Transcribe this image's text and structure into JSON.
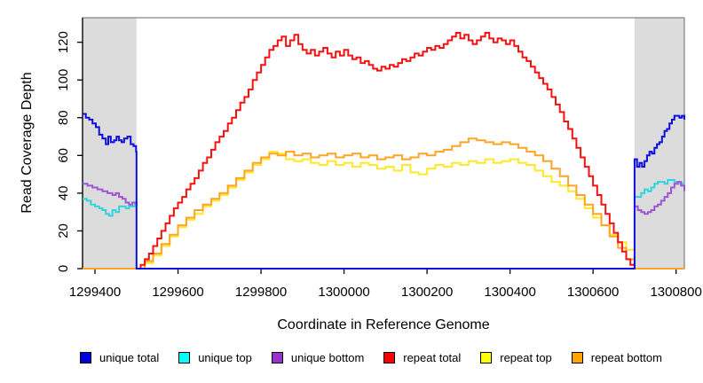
{
  "chart_data": {
    "type": "line",
    "title": "",
    "xlabel": "Coordinate in Reference Genome",
    "ylabel": "Read Coverage Depth",
    "xlim": [
      1299370,
      1300820
    ],
    "ylim": [
      0,
      133
    ],
    "x_ticks": [
      1299400,
      1299600,
      1299800,
      1300000,
      1300200,
      1300400,
      1300600,
      1300800
    ],
    "y_ticks": [
      0,
      20,
      40,
      60,
      80,
      100,
      120
    ],
    "grid": "off",
    "legend_position": "bottom",
    "plot_background": "#ffffff",
    "box_border_color": "#7f7f7f",
    "axis_color": "#000000",
    "shaded_regions": {
      "color": "#dcdcdc",
      "ranges": [
        [
          1299370,
          1299500
        ],
        [
          1300700,
          1300820
        ]
      ]
    },
    "series": [
      {
        "name": "unique total",
        "color": "#0d0de0",
        "legend_color": "#0000dd",
        "segments": [
          {
            "x": [
              1299370,
              1299378,
              1299386,
              1299394,
              1299402,
              1299410,
              1299418,
              1299426,
              1299432,
              1299438,
              1299446,
              1299452,
              1299458,
              1299464,
              1299470,
              1299478,
              1299486,
              1299493,
              1299499,
              1299500,
              1300699,
              1300700,
              1300706,
              1300712,
              1300718,
              1300724,
              1300730,
              1300736,
              1300742,
              1300748,
              1300754,
              1300760,
              1300766,
              1300772,
              1300778,
              1300784,
              1300790,
              1300796,
              1300802,
              1300808,
              1300814,
              1300820
            ],
            "y": [
              82,
              80,
              79,
              77,
              75,
              71,
              69,
              66,
              70,
              67,
              68,
              70,
              68,
              67,
              69,
              70,
              66,
              65,
              62,
              0,
              0,
              58,
              54,
              56,
              54,
              57,
              60,
              62,
              61,
              64,
              66,
              67,
              70,
              73,
              74,
              77,
              79,
              81,
              81,
              80,
              81,
              79
            ]
          }
        ]
      },
      {
        "name": "unique top",
        "color": "#2fd5dd",
        "legend_color": "#00ffff",
        "segments": [
          {
            "x": [
              1299370,
              1299380,
              1299390,
              1299400,
              1299410,
              1299418,
              1299426,
              1299434,
              1299442,
              1299450,
              1299458,
              1299466,
              1299474,
              1299482,
              1299490,
              1299496,
              1299500
            ],
            "y": [
              37,
              36,
              34,
              33,
              32,
              31,
              29,
              28,
              31,
              30,
              33,
              33,
              32,
              33,
              33,
              35,
              34
            ]
          },
          {
            "x": [
              1300700,
              1300708,
              1300716,
              1300724,
              1300732,
              1300740,
              1300748,
              1300756,
              1300764,
              1300772,
              1300780,
              1300788,
              1300796,
              1300804,
              1300812,
              1300820
            ],
            "y": [
              38,
              38,
              40,
              42,
              41,
              43,
              45,
              46,
              46,
              45,
              47,
              47,
              46,
              45,
              45,
              45
            ]
          }
        ]
      },
      {
        "name": "unique bottom",
        "color": "#9d55d4",
        "legend_color": "#9932cc",
        "segments": [
          {
            "x": [
              1299370,
              1299382,
              1299394,
              1299406,
              1299418,
              1299430,
              1299442,
              1299450,
              1299458,
              1299466,
              1299474,
              1299482,
              1299490,
              1299500
            ],
            "y": [
              45,
              44,
              43,
              42,
              41,
              40,
              39,
              40,
              38,
              37,
              35,
              34,
              35,
              34
            ]
          },
          {
            "x": [
              1300700,
              1300708,
              1300716,
              1300724,
              1300732,
              1300740,
              1300748,
              1300756,
              1300764,
              1300772,
              1300780,
              1300788,
              1300796,
              1300804,
              1300812,
              1300820
            ],
            "y": [
              33,
              31,
              30,
              29,
              30,
              31,
              33,
              34,
              36,
              38,
              40,
              43,
              45,
              46,
              44,
              41
            ]
          }
        ]
      },
      {
        "name": "repeat total",
        "color": "#f51111",
        "legend_color": "#ff0000",
        "segments": [
          {
            "x_start": 1299500,
            "x_step": 10,
            "y": [
              0,
              2,
              5,
              8,
              12,
              16,
              20,
              24,
              28,
              32,
              35,
              38,
              42,
              45,
              48,
              52,
              56,
              59,
              63,
              67,
              70,
              73,
              77,
              80,
              84,
              88,
              91,
              95,
              100,
              104,
              108,
              112,
              116,
              118,
              121,
              123,
              118,
              121,
              124,
              119,
              116,
              114,
              116,
              113,
              115,
              117,
              114,
              112,
              115,
              113,
              116,
              113,
              111,
              112,
              109,
              110,
              108,
              106,
              105,
              107,
              106,
              108,
              107,
              109,
              111,
              110,
              112,
              114,
              113,
              115,
              117,
              116,
              118,
              117,
              119,
              121,
              123,
              125,
              122,
              124,
              121,
              119,
              121,
              123,
              125,
              122,
              120,
              122,
              121,
              119,
              121,
              118,
              115,
              112,
              110,
              107,
              104,
              101,
              98,
              95,
              91,
              87,
              83,
              78,
              74,
              69,
              64,
              59,
              54,
              49,
              44,
              39,
              34,
              29,
              24,
              19,
              14,
              9,
              5,
              2,
              0
            ]
          }
        ]
      },
      {
        "name": "repeat top",
        "color": "#ffe926",
        "legend_color": "#ffff00",
        "segments": [
          {
            "x_start": 1299500,
            "x_step": 20,
            "y": [
              0,
              3,
              7,
              12,
              17,
              22,
              26,
              29,
              33,
              36,
              39,
              43,
              47,
              51,
              55,
              58,
              62,
              61,
              58,
              57,
              58,
              56,
              55,
              57,
              55,
              56,
              54,
              56,
              55,
              53,
              54,
              52,
              55,
              51,
              50,
              53,
              55,
              54,
              56,
              55,
              57,
              56,
              58,
              56,
              57,
              58,
              56,
              55,
              52,
              49,
              46,
              44,
              41,
              37,
              32,
              27,
              23,
              18,
              14,
              10,
              0
            ]
          }
        ]
      },
      {
        "name": "repeat bottom",
        "color": "#ffa424",
        "legend_color": "#ffa500",
        "segments": [
          {
            "x": [
              1299370,
              1299500
            ],
            "y": [
              0,
              0
            ]
          },
          {
            "x_start": 1299500,
            "x_step": 20,
            "y": [
              0,
              4,
              8,
              13,
              18,
              23,
              27,
              31,
              34,
              37,
              40,
              44,
              48,
              52,
              56,
              59,
              61,
              60,
              62,
              60,
              61,
              59,
              60,
              61,
              59,
              60,
              61,
              59,
              60,
              58,
              59,
              60,
              58,
              59,
              61,
              60,
              62,
              63,
              65,
              67,
              69,
              68,
              67,
              66,
              67,
              66,
              64,
              62,
              60,
              57,
              53,
              49,
              44,
              39,
              34,
              29,
              23,
              17,
              11,
              5,
              0
            ]
          },
          {
            "x": [
              1300700,
              1300820
            ],
            "y": [
              0,
              0
            ]
          }
        ]
      }
    ]
  }
}
